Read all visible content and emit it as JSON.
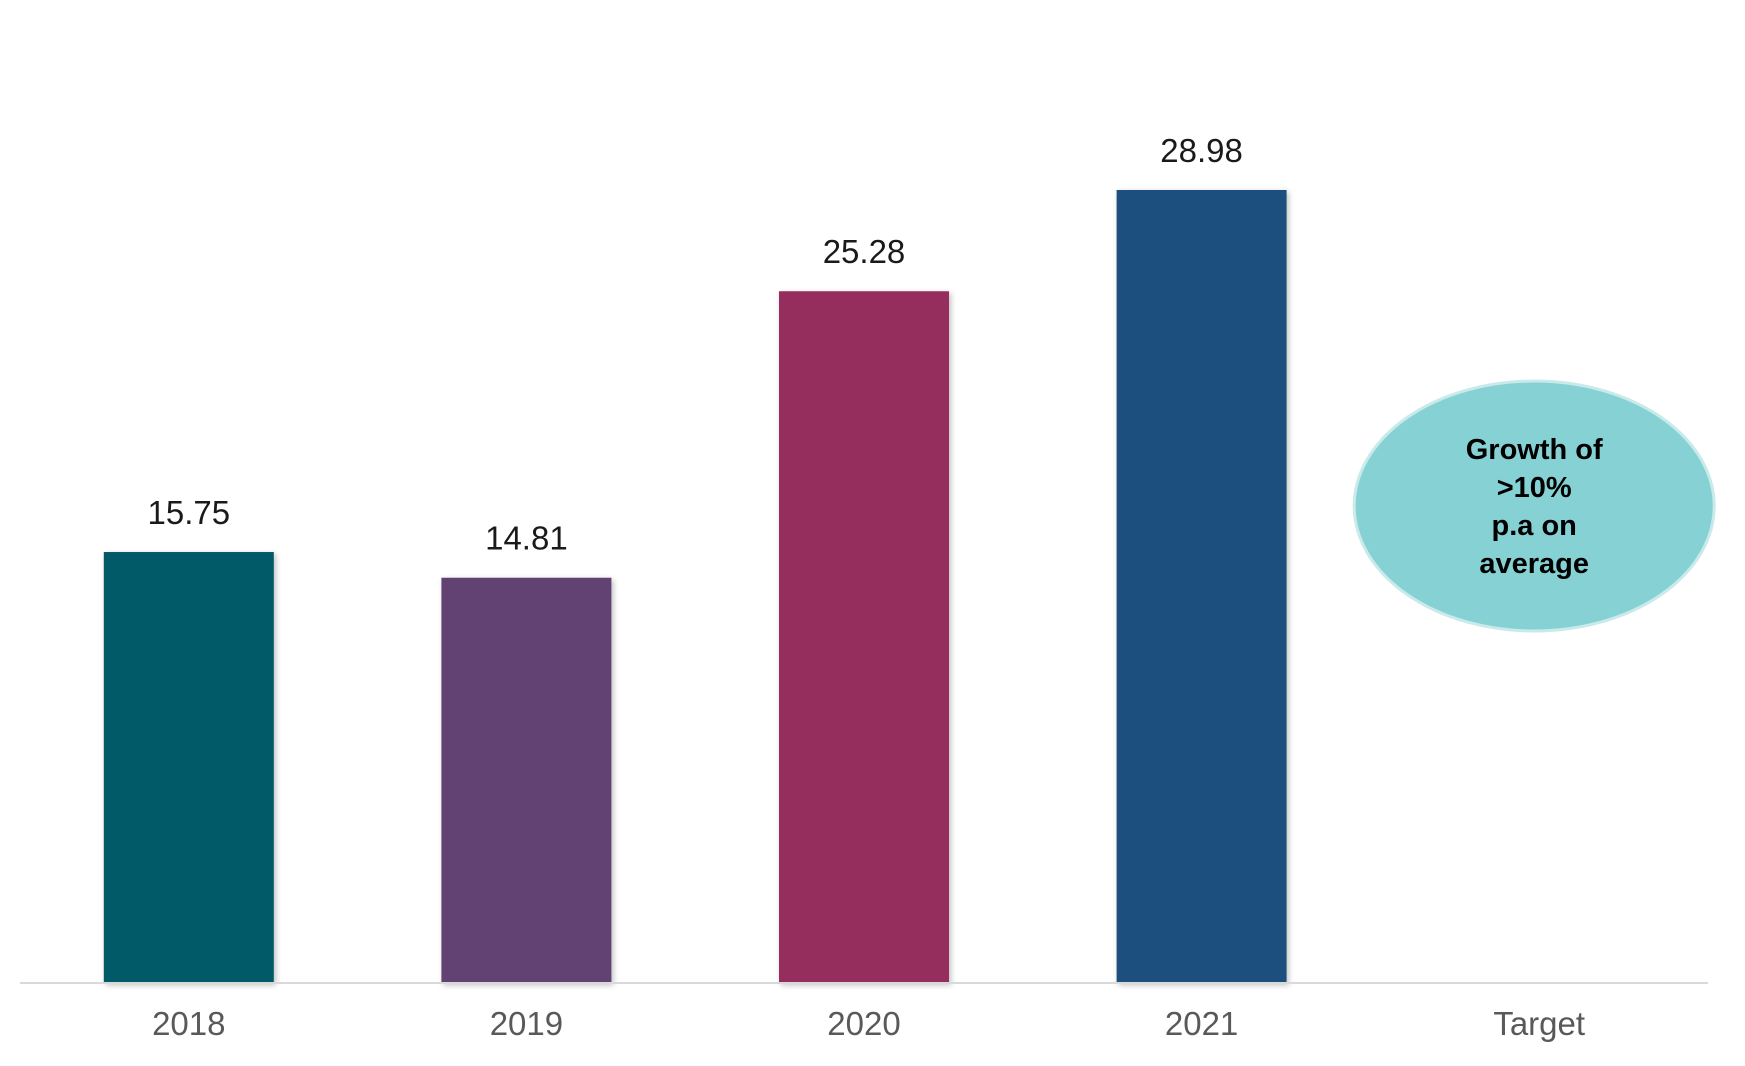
{
  "chart_data": {
    "type": "bar",
    "title": "",
    "xlabel": "",
    "ylabel": "",
    "categories": [
      "2018",
      "2019",
      "2020",
      "2021",
      "Target"
    ],
    "values": [
      15.75,
      14.81,
      25.28,
      28.98,
      null
    ],
    "value_labels": [
      "15.75",
      "14.81",
      "25.28",
      "28.98",
      ""
    ],
    "bar_colors": [
      "#015a67",
      "#624372",
      "#952f5d",
      "#1e507e"
    ],
    "ylim": [
      0,
      32
    ],
    "grid": false,
    "legend": "none",
    "annotation": {
      "category": "Target",
      "shape": "ellipse",
      "color": "#86d1d3",
      "lines": [
        "Growth of",
        ">10%",
        "p.a on",
        "average"
      ]
    }
  },
  "axis_color": "#d9d9d9",
  "tick_label_color": "#595959"
}
